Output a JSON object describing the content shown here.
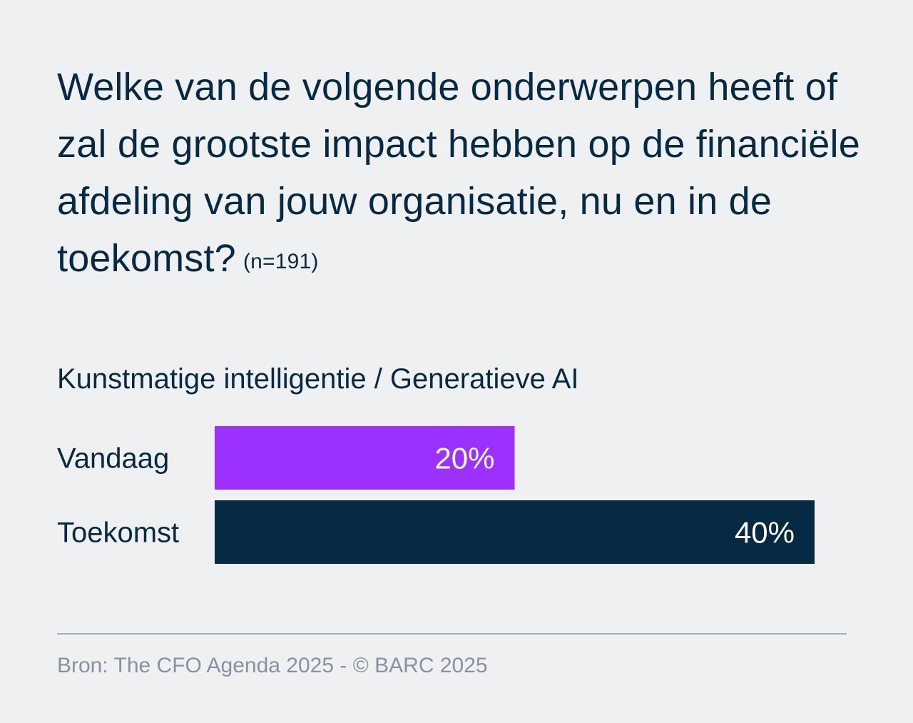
{
  "question": {
    "text": "Welke van de volgende onderwerpen heeft of zal de grootste impact hebben op de financiële afdeling van jouw organisatie, nu en in de toekomst?",
    "sample": "(n=191)"
  },
  "chart_data": {
    "type": "bar",
    "orientation": "horizontal",
    "title": "Kunstmatige intelligentie / Generatieve AI",
    "categories": [
      "Vandaag",
      "Toekomst"
    ],
    "values": [
      20,
      40
    ],
    "value_labels": [
      "20%",
      "40%"
    ],
    "unit": "%",
    "colors": [
      "#9b30ff",
      "#062a44"
    ],
    "xlim": [
      0,
      40
    ],
    "grid": false
  },
  "footer": {
    "source": "Bron: The CFO Agenda 2025 - © BARC 2025"
  },
  "colors": {
    "background": "#eff0f2",
    "text": "#062a44",
    "muted": "#8a90a2"
  }
}
